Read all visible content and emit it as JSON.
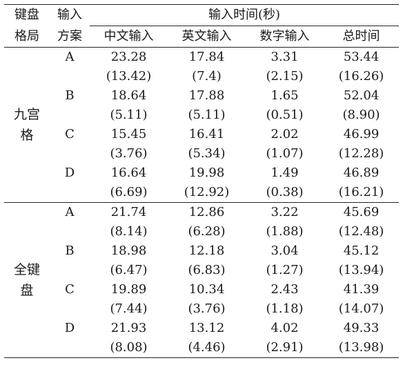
{
  "header": {
    "col1": [
      "键盘",
      "格局"
    ],
    "col2": [
      "输入",
      "方案"
    ],
    "group_title": "输入时间(秒)",
    "sub_cols": [
      "中文输入",
      "英文输入",
      "数字输入",
      "总时间"
    ]
  },
  "sections": [
    {
      "name_lines": [
        "九宫",
        "格"
      ],
      "rows": [
        {
          "scheme": "A",
          "mean": [
            "23.28",
            "17.84",
            "3.31",
            "53.44"
          ],
          "sd": [
            "(13.42)",
            "(7.4)",
            "(2.15)",
            "(16.26)"
          ]
        },
        {
          "scheme": "B",
          "mean": [
            "18.64",
            "17.88",
            "1.65",
            "52.04"
          ],
          "sd": [
            "(5.11)",
            "(5.11)",
            "(0.51)",
            "(8.90)"
          ]
        },
        {
          "scheme": "C",
          "mean": [
            "15.45",
            "16.41",
            "2.02",
            "46.99"
          ],
          "sd": [
            "(3.76)",
            "(5.34)",
            "(1.07)",
            "(12.28)"
          ]
        },
        {
          "scheme": "D",
          "mean": [
            "16.64",
            "19.98",
            "1.49",
            "46.89"
          ],
          "sd": [
            "(6.69)",
            "(12.92)",
            "(0.38)",
            "(16.21)"
          ]
        }
      ]
    },
    {
      "name_lines": [
        "全键",
        "盘"
      ],
      "rows": [
        {
          "scheme": "A",
          "mean": [
            "21.74",
            "12.86",
            "3.22",
            "45.69"
          ],
          "sd": [
            "(8.14)",
            "(6.28)",
            "(1.88)",
            "(12.48)"
          ]
        },
        {
          "scheme": "B",
          "mean": [
            "18.98",
            "12.18",
            "3.04",
            "45.12"
          ],
          "sd": [
            "(6.47)",
            "(6.83)",
            "(1.27)",
            "(13.94)"
          ]
        },
        {
          "scheme": "C",
          "mean": [
            "19.89",
            "10.34",
            "2.43",
            "41.39"
          ],
          "sd": [
            "(7.44)",
            "(3.76)",
            "(1.18)",
            "(14.07)"
          ]
        },
        {
          "scheme": "D",
          "mean": [
            "21.93",
            "13.12",
            "4.02",
            "49.33"
          ],
          "sd": [
            "(8.08)",
            "(4.46)",
            "(2.91)",
            "(13.98)"
          ]
        }
      ]
    }
  ]
}
